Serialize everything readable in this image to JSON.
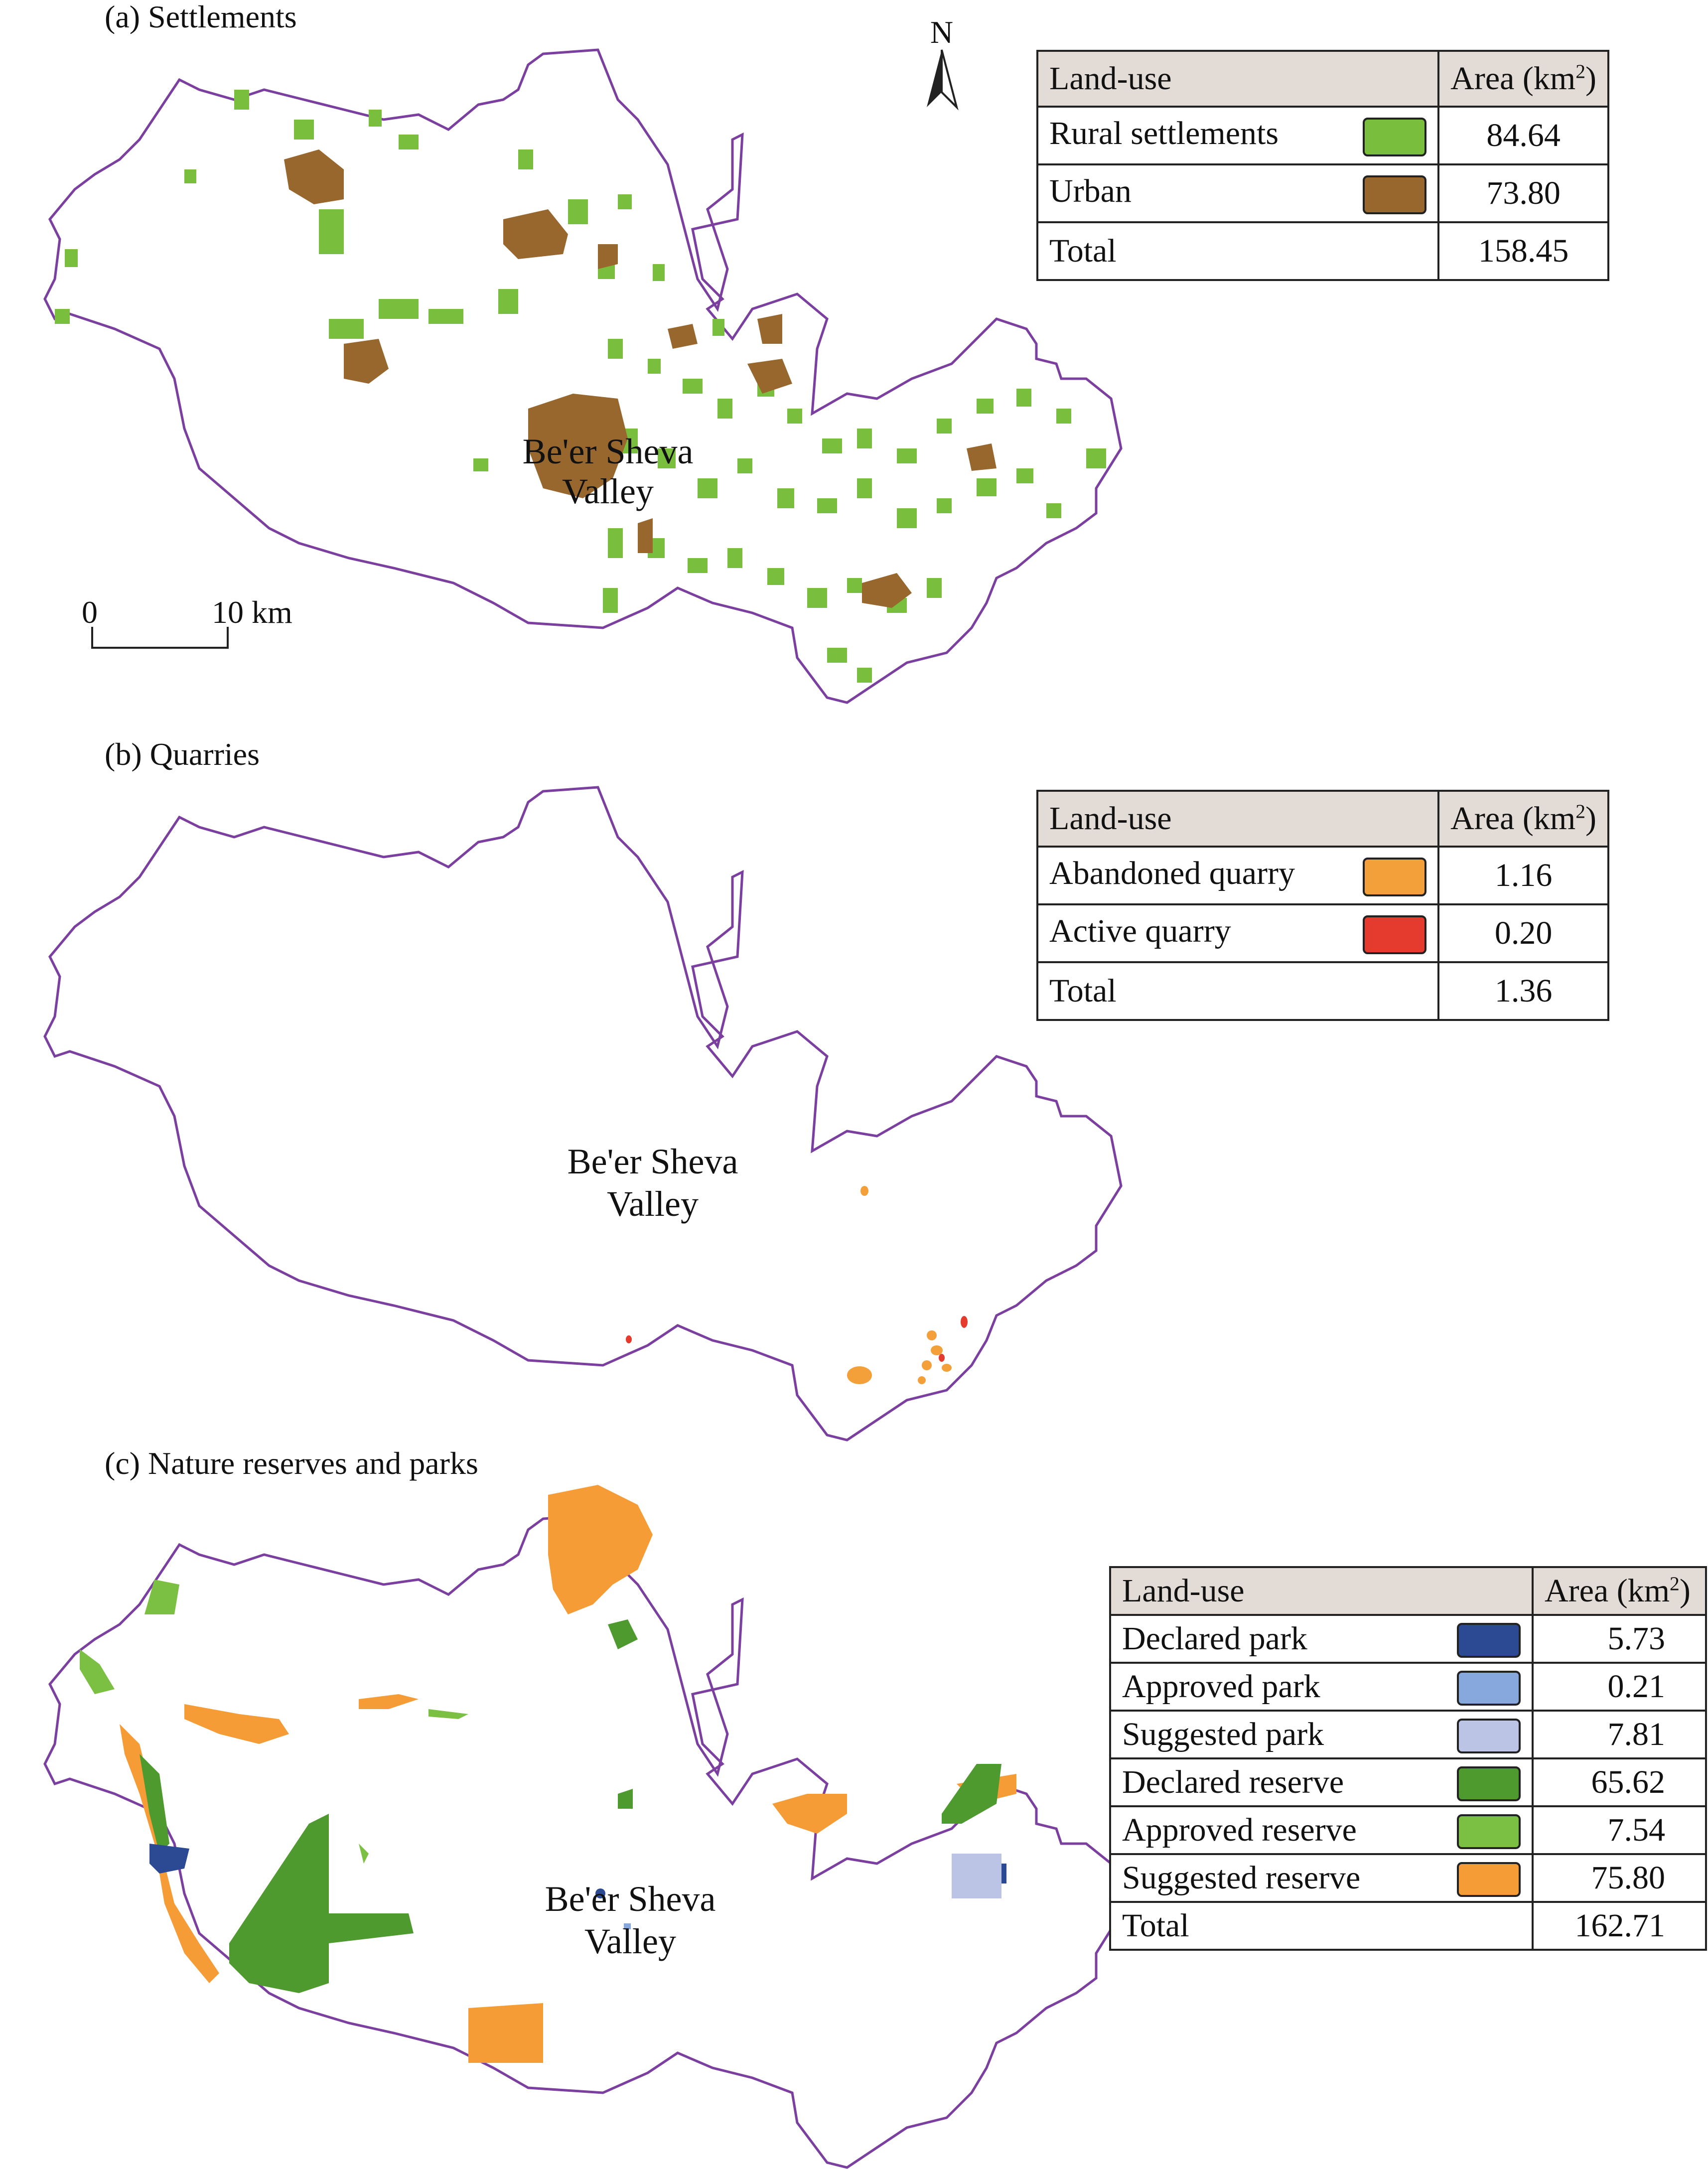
{
  "colors": {
    "boundary": "#7b3fa0",
    "rural": "#79bf3d",
    "urban": "#98672d",
    "abandoned_quarry": "#f4a03a",
    "active_quarry": "#e53a2e",
    "declared_park": "#2c4a93",
    "approved_park": "#86a8dc",
    "suggested_park": "#bcc4e6",
    "declared_reserve": "#4e9a2f",
    "approved_reserve": "#7cc043",
    "suggested_reserve": "#f59c36"
  },
  "panel_a": {
    "title": "(a) Settlements",
    "place_label_line1": "Be'er Sheva",
    "place_label_line2": "Valley",
    "north_label": "N",
    "scale_zero": "0",
    "scale_max": "10 km",
    "legend": {
      "col1": "Land-use",
      "col2": "Area (km",
      "col2_sup": "2",
      "col2_end": ")",
      "rows": [
        {
          "label": "Rural settlements",
          "value": "84.64"
        },
        {
          "label": "Urban",
          "value": "73.80"
        },
        {
          "label": "Total",
          "value": "158.45"
        }
      ]
    }
  },
  "panel_b": {
    "title": "(b) Quarries",
    "place_label_line1": "Be'er Sheva",
    "place_label_line2": "Valley",
    "legend": {
      "col1": "Land-use",
      "col2": "Area (km",
      "col2_sup": "2",
      "col2_end": ")",
      "rows": [
        {
          "label": "Abandoned quarry",
          "value": "1.16"
        },
        {
          "label": "Active quarry",
          "value": "0.20"
        },
        {
          "label": "Total",
          "value": "1.36"
        }
      ]
    }
  },
  "panel_c": {
    "title": "(c) Nature reserves and parks",
    "place_label_line1": "Be'er Sheva",
    "place_label_line2": "Valley",
    "legend": {
      "col1": "Land-use",
      "col2": "Area (km",
      "col2_sup": "2",
      "col2_end": ")",
      "rows": [
        {
          "label": "Declared park",
          "value": "5.73"
        },
        {
          "label": "Approved park",
          "value": "0.21"
        },
        {
          "label": "Suggested park",
          "value": "7.81"
        },
        {
          "label": "Declared reserve",
          "value": "65.62"
        },
        {
          "label": "Approved reserve",
          "value": "7.54"
        },
        {
          "label": "Suggested reserve",
          "value": "75.80"
        },
        {
          "label": "Total",
          "value": "162.71"
        }
      ]
    }
  }
}
